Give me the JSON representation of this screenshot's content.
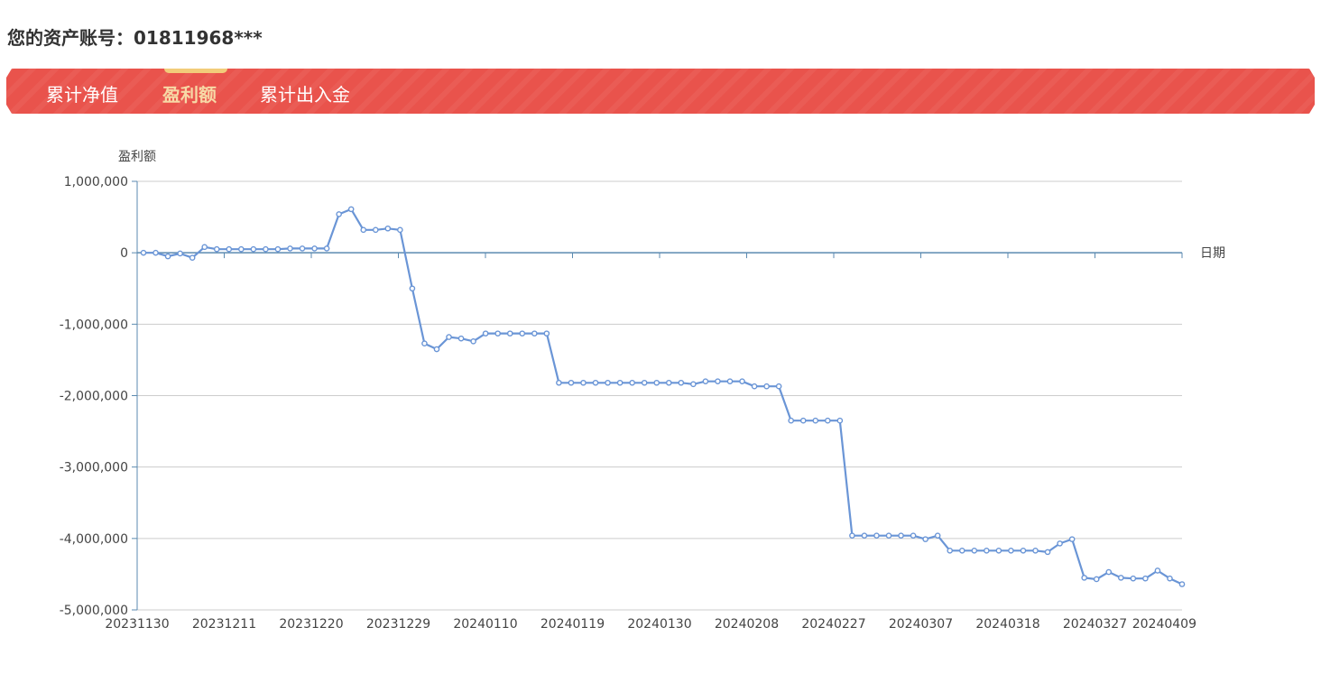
{
  "account": {
    "label": "您的资产账号：",
    "number": "01811968***"
  },
  "tabs": [
    {
      "label": "累计净值",
      "active": false
    },
    {
      "label": "盈利额",
      "active": true
    },
    {
      "label": "累计出入金",
      "active": false
    }
  ],
  "colors": {
    "tab_bar": "#e9534c",
    "tab_active_text": "#f7d9a6",
    "series_line": "#6a95d6",
    "axis": "#5b8ab0",
    "grid": "#cccccc"
  },
  "chart_data": {
    "type": "line",
    "ylabel": "盈利额",
    "xlabel": "日期",
    "ylim": [
      -5000000,
      1000000
    ],
    "yticks": [
      1000000,
      0,
      -1000000,
      -2000000,
      -3000000,
      -4000000,
      -5000000
    ],
    "ytick_labels": [
      "1,000,000",
      "0",
      "-1,000,000",
      "-2,000,000",
      "-3,000,000",
      "-4,000,000",
      "-5,000,000"
    ],
    "xtick_labels": [
      "20231130",
      "20231211",
      "20231220",
      "20231229",
      "20240110",
      "20240119",
      "20240130",
      "20240208",
      "20240227",
      "20240307",
      "20240318",
      "20240327",
      "20240409"
    ],
    "xtick_index": [
      0,
      7,
      14,
      21,
      28,
      35,
      42,
      49,
      56,
      63,
      70,
      77,
      84
    ],
    "grid": true,
    "series": [
      {
        "values": [
          0,
          0,
          -50000,
          -10000,
          -70000,
          80000,
          50000,
          50000,
          50000,
          50000,
          50000,
          50000,
          60000,
          60000,
          60000,
          60000,
          540000,
          610000,
          320000,
          320000,
          340000,
          320000,
          -500000,
          -1270000,
          -1350000,
          -1180000,
          -1200000,
          -1240000,
          -1130000,
          -1130000,
          -1130000,
          -1130000,
          -1130000,
          -1130000,
          -1820000,
          -1820000,
          -1820000,
          -1820000,
          -1820000,
          -1820000,
          -1820000,
          -1820000,
          -1820000,
          -1820000,
          -1820000,
          -1840000,
          -1800000,
          -1800000,
          -1800000,
          -1800000,
          -1870000,
          -1870000,
          -1870000,
          -2350000,
          -2350000,
          -2350000,
          -2350000,
          -2350000,
          -3960000,
          -3960000,
          -3960000,
          -3960000,
          -3960000,
          -3960000,
          -4010000,
          -3960000,
          -4170000,
          -4170000,
          -4170000,
          -4170000,
          -4170000,
          -4170000,
          -4170000,
          -4170000,
          -4190000,
          -4070000,
          -4010000,
          -4550000,
          -4570000,
          -4470000,
          -4550000,
          -4560000,
          -4560000,
          -4450000,
          -4560000,
          -4640000
        ]
      }
    ]
  }
}
